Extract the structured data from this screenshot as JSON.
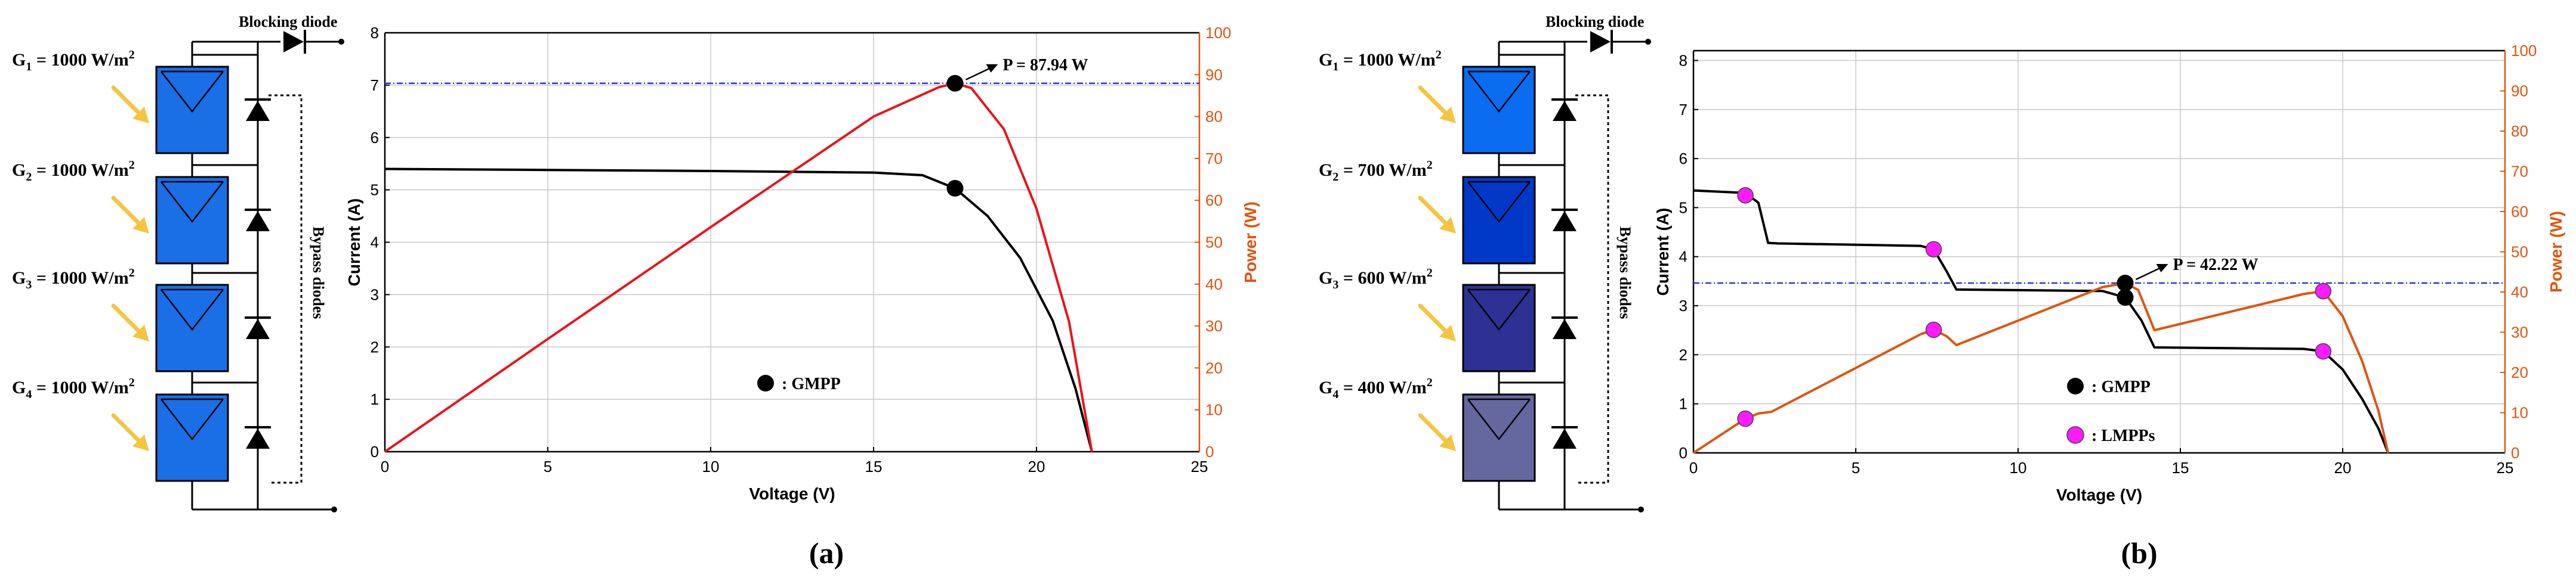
{
  "panel_a": {
    "caption": "(a)",
    "blocking_label": "Blocking diode",
    "bypass_label": "Bypass diodes",
    "irradiance_labels": [
      {
        "g": "G",
        "sub": "1",
        "text": " = 1000 W/m",
        "sup": "2"
      },
      {
        "g": "G",
        "sub": "2",
        "text": " = 1000 W/m",
        "sup": "2"
      },
      {
        "g": "G",
        "sub": "3",
        "text": " = 1000 W/m",
        "sup": "2"
      },
      {
        "g": "G",
        "sub": "4",
        "text": " = 1000 W/m",
        "sup": "2"
      }
    ],
    "module_colors": [
      "#1a6ee6",
      "#1a6ee6",
      "#1a6ee6",
      "#1a6ee6"
    ],
    "gmpp_annotation": "P = 87.94 W",
    "legend_gmpp": ": GMPP"
  },
  "panel_b": {
    "caption": "(b)",
    "blocking_label": "Blocking diode",
    "bypass_label": "Bypass diodes",
    "irradiance_labels": [
      {
        "g": "G",
        "sub": "1",
        "text": " = 1000 W/m",
        "sup": "2"
      },
      {
        "g": "G",
        "sub": "2",
        "text": " = 700 W/m",
        "sup": "2"
      },
      {
        "g": "G",
        "sub": "3",
        "text": " = 600 W/m",
        "sup": "2"
      },
      {
        "g": "G",
        "sub": "4",
        "text": " = 400 W/m",
        "sup": "2"
      }
    ],
    "module_colors": [
      "#0a6cf0",
      "#0038c8",
      "#2e3193",
      "#65679f"
    ],
    "gmpp_annotation": "P = 42.22 W",
    "legend_gmpp": ": GMPP",
    "legend_lmpp": ": LMPPs"
  },
  "colors": {
    "current_curve": "#000000",
    "power_curve_a": "#e8141c",
    "power_curve_b": "#e0540f",
    "right_axis": "#e0540f",
    "gmpp_line": "#2a36d8",
    "lmpp_marker": "#ff1aff",
    "grid": "#c8c8c8"
  },
  "chart_data": [
    {
      "type": "line",
      "title": "",
      "xlabel": "Voltage (V)",
      "ylabel": "Current (A)",
      "y2label": "Power (W)",
      "xlim": [
        0,
        25
      ],
      "ylim": [
        0,
        8
      ],
      "y2lim": [
        0,
        100
      ],
      "xticks": [
        "0",
        "5",
        "10",
        "15",
        "20",
        "25"
      ],
      "yticks": [
        "0",
        "1",
        "2",
        "3",
        "4",
        "5",
        "6",
        "7",
        "8"
      ],
      "y2ticks": [
        "0",
        "10",
        "20",
        "30",
        "40",
        "50",
        "60",
        "70",
        "80",
        "90",
        "100"
      ],
      "series": [
        {
          "name": "Current",
          "axis": "left",
          "x": [
            0,
            5,
            10,
            15,
            16.5,
            17.5,
            18.5,
            19.5,
            20.5,
            21.2,
            21.7
          ],
          "y": [
            5.4,
            5.38,
            5.36,
            5.33,
            5.28,
            5.03,
            4.5,
            3.7,
            2.5,
            1.2,
            0
          ]
        },
        {
          "name": "Power",
          "axis": "right",
          "x": [
            0,
            5,
            10,
            15,
            17.0,
            17.5,
            18.0,
            19.0,
            20.0,
            21.0,
            21.7
          ],
          "y": [
            0,
            26.9,
            53.6,
            80.0,
            87.0,
            87.94,
            86.8,
            77.0,
            58.0,
            31.0,
            0
          ]
        }
      ],
      "gmpp": {
        "voltage": 17.5,
        "current": 5.03,
        "power": 87.94
      },
      "gmpp_line_power": 87.94
    },
    {
      "type": "line",
      "title": "",
      "xlabel": "Voltage (V)",
      "ylabel": "Current (A)",
      "y2label": "Power (W)",
      "xlim": [
        0,
        25
      ],
      "ylim": [
        0,
        8.2
      ],
      "y2lim": [
        0,
        100
      ],
      "xticks": [
        "0",
        "5",
        "10",
        "15",
        "20",
        "25"
      ],
      "yticks": [
        "0",
        "1",
        "2",
        "3",
        "4",
        "5",
        "6",
        "7",
        "8"
      ],
      "y2ticks": [
        "0",
        "10",
        "20",
        "30",
        "40",
        "50",
        "60",
        "70",
        "80",
        "90",
        "100"
      ],
      "series": [
        {
          "name": "Current",
          "axis": "left",
          "x": [
            0,
            1.6,
            2.0,
            2.3,
            2.6,
            7.0,
            7.4,
            7.8,
            8.1,
            12.6,
            13.3,
            13.8,
            14.2,
            18.8,
            19.4,
            20.0,
            20.6,
            21.1,
            21.4
          ],
          "y": [
            5.35,
            5.3,
            5.1,
            4.28,
            4.27,
            4.22,
            4.15,
            3.7,
            3.33,
            3.3,
            3.17,
            2.7,
            2.15,
            2.12,
            2.07,
            1.7,
            1.1,
            0.5,
            0
          ]
        },
        {
          "name": "Power",
          "axis": "right",
          "x": [
            0,
            1.6,
            2.0,
            2.4,
            7.0,
            7.4,
            7.8,
            8.1,
            12.6,
            13.3,
            13.7,
            14.2,
            18.8,
            19.4,
            20.0,
            20.6,
            21.1,
            21.4
          ],
          "y": [
            0,
            8.5,
            9.8,
            10.2,
            29.5,
            30.6,
            29.0,
            26.8,
            41.2,
            42.22,
            40.5,
            30.5,
            39.5,
            40.2,
            34.0,
            22.8,
            10.5,
            0
          ]
        }
      ],
      "gmpp": {
        "voltage": 13.3,
        "current": 3.17,
        "power": 42.22
      },
      "lmpps": [
        {
          "voltage": 1.6,
          "current": 5.25,
          "power": 8.5
        },
        {
          "voltage": 7.4,
          "current": 4.15,
          "power": 30.6
        },
        {
          "voltage": 19.4,
          "current": 2.07,
          "power": 40.2
        }
      ],
      "gmpp_line_power": 42.22
    }
  ]
}
